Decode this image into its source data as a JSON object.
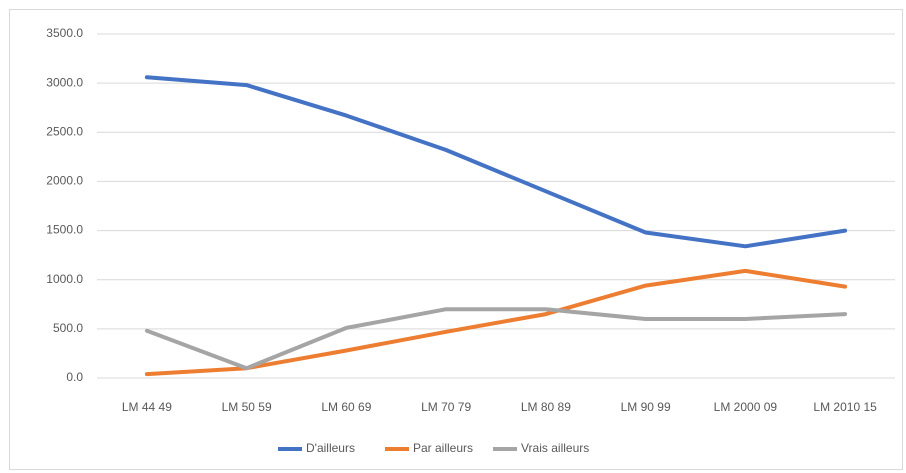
{
  "chart_data": {
    "type": "line",
    "categories": [
      "LM 44 49",
      "LM 50 59",
      "LM 60 69",
      "LM 70 79",
      "LM 80 89",
      "LM 90 99",
      "LM 2000 09",
      "LM 2010 15"
    ],
    "series": [
      {
        "name": "D'ailleurs",
        "color": "#4472c4",
        "values": [
          3060,
          2980,
          2670,
          2320,
          1900,
          1480,
          1340,
          1500
        ]
      },
      {
        "name": "Par ailleurs",
        "color": "#ed7d31",
        "values": [
          40,
          100,
          280,
          470,
          650,
          940,
          1090,
          930
        ]
      },
      {
        "name": "Vrais ailleurs",
        "color": "#a5a5a5",
        "values": [
          480,
          100,
          510,
          700,
          700,
          600,
          600,
          650
        ]
      }
    ],
    "ylim": [
      0,
      3500
    ],
    "yticks": [
      {
        "value": 0,
        "label": "0.0"
      },
      {
        "value": 500,
        "label": "500.0"
      },
      {
        "value": 1000,
        "label": "1000.0"
      },
      {
        "value": 1500,
        "label": "1500.0"
      },
      {
        "value": 2000,
        "label": "2000.0"
      },
      {
        "value": 2500,
        "label": "2500.0"
      },
      {
        "value": 3000,
        "label": "3000.0"
      },
      {
        "value": 3500,
        "label": "3500.0"
      }
    ],
    "grid": true,
    "legend": "bottom"
  }
}
